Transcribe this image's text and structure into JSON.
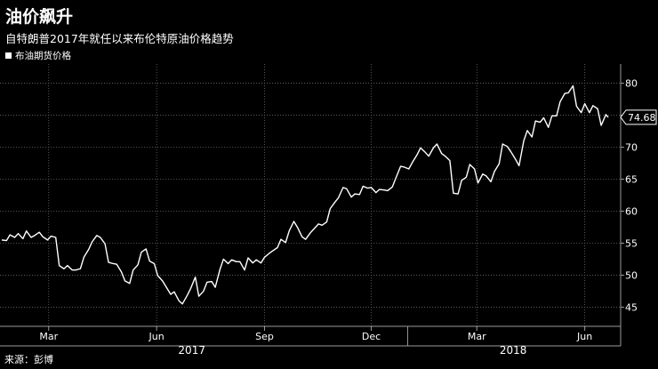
{
  "header": {
    "title": "油价飙升",
    "subtitle": "自特朗普2017年就任以来布伦特原油价格趋势",
    "legend": "布油期货价格",
    "source": "来源：彭博"
  },
  "chart_data": {
    "type": "line",
    "title": "油价飙升",
    "subtitle": "自特朗普2017年就任以来布伦特原油价格趋势",
    "xlabel": "",
    "ylabel": "",
    "ylim": [
      42,
      83
    ],
    "yticks": [
      45,
      50,
      55,
      60,
      65,
      70,
      75,
      80
    ],
    "grid": true,
    "legend_position": "top-left",
    "x_ticks": [
      {
        "label": "Mar",
        "date": "2017-03-01"
      },
      {
        "label": "Jun",
        "date": "2017-06-01"
      },
      {
        "label": "Sep",
        "date": "2017-09-01"
      },
      {
        "label": "Dec",
        "date": "2017-12-01"
      },
      {
        "label": "Mar",
        "date": "2018-03-01"
      },
      {
        "label": "Jun",
        "date": "2018-06-01"
      }
    ],
    "year_labels": [
      {
        "label": "2017",
        "date": "2017-07-01"
      },
      {
        "label": "2018",
        "date": "2018-04-01"
      }
    ],
    "year_dividers": [
      "2018-01-01"
    ],
    "last_value_label": "74.68",
    "series": [
      {
        "name": "布油期货价格",
        "color": "#ffffff",
        "points": [
          [
            "2017-01-20",
            55.5
          ],
          [
            "2017-01-24",
            55.4
          ],
          [
            "2017-01-27",
            56.3
          ],
          [
            "2017-01-31",
            55.9
          ],
          [
            "2017-02-03",
            56.5
          ],
          [
            "2017-02-07",
            55.7
          ],
          [
            "2017-02-10",
            56.9
          ],
          [
            "2017-02-14",
            55.9
          ],
          [
            "2017-02-17",
            56.2
          ],
          [
            "2017-02-21",
            56.7
          ],
          [
            "2017-02-24",
            56.0
          ],
          [
            "2017-02-28",
            55.5
          ],
          [
            "2017-03-03",
            56.1
          ],
          [
            "2017-03-07",
            55.9
          ],
          [
            "2017-03-10",
            51.5
          ],
          [
            "2017-03-14",
            51.0
          ],
          [
            "2017-03-17",
            51.5
          ],
          [
            "2017-03-21",
            50.8
          ],
          [
            "2017-03-24",
            50.8
          ],
          [
            "2017-03-28",
            51.0
          ],
          [
            "2017-03-31",
            52.8
          ],
          [
            "2017-04-04",
            54.0
          ],
          [
            "2017-04-07",
            55.2
          ],
          [
            "2017-04-11",
            56.2
          ],
          [
            "2017-04-14",
            55.9
          ],
          [
            "2017-04-18",
            54.9
          ],
          [
            "2017-04-21",
            52.0
          ],
          [
            "2017-04-25",
            51.8
          ],
          [
            "2017-04-28",
            51.7
          ],
          [
            "2017-05-02",
            50.5
          ],
          [
            "2017-05-05",
            49.1
          ],
          [
            "2017-05-09",
            48.7
          ],
          [
            "2017-05-12",
            50.8
          ],
          [
            "2017-05-16",
            51.6
          ],
          [
            "2017-05-19",
            53.6
          ],
          [
            "2017-05-23",
            54.1
          ],
          [
            "2017-05-26",
            52.2
          ],
          [
            "2017-05-30",
            51.8
          ],
          [
            "2017-06-02",
            49.9
          ],
          [
            "2017-06-06",
            49.1
          ],
          [
            "2017-06-09",
            48.2
          ],
          [
            "2017-06-13",
            47.0
          ],
          [
            "2017-06-16",
            47.4
          ],
          [
            "2017-06-20",
            46.0
          ],
          [
            "2017-06-23",
            45.5
          ],
          [
            "2017-06-27",
            46.8
          ],
          [
            "2017-06-30",
            47.9
          ],
          [
            "2017-07-04",
            49.7
          ],
          [
            "2017-07-07",
            46.7
          ],
          [
            "2017-07-11",
            47.5
          ],
          [
            "2017-07-14",
            48.9
          ],
          [
            "2017-07-18",
            49.0
          ],
          [
            "2017-07-21",
            48.1
          ],
          [
            "2017-07-25",
            50.9
          ],
          [
            "2017-07-28",
            52.5
          ],
          [
            "2017-08-01",
            51.8
          ],
          [
            "2017-08-04",
            52.4
          ],
          [
            "2017-08-08",
            52.1
          ],
          [
            "2017-08-11",
            52.1
          ],
          [
            "2017-08-15",
            50.8
          ],
          [
            "2017-08-18",
            52.7
          ],
          [
            "2017-08-22",
            51.9
          ],
          [
            "2017-08-25",
            52.4
          ],
          [
            "2017-08-29",
            51.9
          ],
          [
            "2017-09-01",
            52.8
          ],
          [
            "2017-09-05",
            53.4
          ],
          [
            "2017-09-08",
            53.8
          ],
          [
            "2017-09-12",
            54.3
          ],
          [
            "2017-09-15",
            55.6
          ],
          [
            "2017-09-19",
            55.1
          ],
          [
            "2017-09-22",
            56.9
          ],
          [
            "2017-09-26",
            58.4
          ],
          [
            "2017-09-29",
            57.5
          ],
          [
            "2017-10-03",
            56.0
          ],
          [
            "2017-10-06",
            55.6
          ],
          [
            "2017-10-10",
            56.6
          ],
          [
            "2017-10-13",
            57.2
          ],
          [
            "2017-10-17",
            58.0
          ],
          [
            "2017-10-20",
            57.8
          ],
          [
            "2017-10-24",
            58.3
          ],
          [
            "2017-10-27",
            60.4
          ],
          [
            "2017-10-31",
            61.4
          ],
          [
            "2017-11-03",
            62.1
          ],
          [
            "2017-11-07",
            63.7
          ],
          [
            "2017-11-10",
            63.5
          ],
          [
            "2017-11-14",
            62.2
          ],
          [
            "2017-11-17",
            62.7
          ],
          [
            "2017-11-21",
            62.6
          ],
          [
            "2017-11-24",
            63.9
          ],
          [
            "2017-11-28",
            63.6
          ],
          [
            "2017-12-01",
            63.7
          ],
          [
            "2017-12-05",
            62.9
          ],
          [
            "2017-12-08",
            63.4
          ],
          [
            "2017-12-12",
            63.3
          ],
          [
            "2017-12-15",
            63.2
          ],
          [
            "2017-12-19",
            63.8
          ],
          [
            "2017-12-22",
            65.2
          ],
          [
            "2017-12-26",
            67.0
          ],
          [
            "2017-12-29",
            66.9
          ],
          [
            "2018-01-02",
            66.6
          ],
          [
            "2018-01-05",
            67.6
          ],
          [
            "2018-01-09",
            68.8
          ],
          [
            "2018-01-12",
            69.9
          ],
          [
            "2018-01-16",
            69.2
          ],
          [
            "2018-01-19",
            68.6
          ],
          [
            "2018-01-23",
            69.9
          ],
          [
            "2018-01-26",
            70.5
          ],
          [
            "2018-01-30",
            69.0
          ],
          [
            "2018-02-02",
            68.6
          ],
          [
            "2018-02-06",
            67.9
          ],
          [
            "2018-02-09",
            62.8
          ],
          [
            "2018-02-13",
            62.7
          ],
          [
            "2018-02-16",
            64.8
          ],
          [
            "2018-02-20",
            65.3
          ],
          [
            "2018-02-23",
            67.3
          ],
          [
            "2018-02-27",
            66.6
          ],
          [
            "2018-03-02",
            64.4
          ],
          [
            "2018-03-06",
            65.8
          ],
          [
            "2018-03-09",
            65.5
          ],
          [
            "2018-03-13",
            64.6
          ],
          [
            "2018-03-16",
            66.2
          ],
          [
            "2018-03-20",
            67.4
          ],
          [
            "2018-03-23",
            70.5
          ],
          [
            "2018-03-27",
            70.1
          ],
          [
            "2018-03-30",
            69.3
          ],
          [
            "2018-04-03",
            68.1
          ],
          [
            "2018-04-06",
            67.1
          ],
          [
            "2018-04-10",
            71.0
          ],
          [
            "2018-04-13",
            72.6
          ],
          [
            "2018-04-17",
            71.6
          ],
          [
            "2018-04-20",
            74.1
          ],
          [
            "2018-04-24",
            73.9
          ],
          [
            "2018-04-27",
            74.6
          ],
          [
            "2018-05-01",
            73.1
          ],
          [
            "2018-05-04",
            74.9
          ],
          [
            "2018-05-08",
            74.9
          ],
          [
            "2018-05-11",
            77.1
          ],
          [
            "2018-05-15",
            78.4
          ],
          [
            "2018-05-18",
            78.5
          ],
          [
            "2018-05-22",
            79.6
          ],
          [
            "2018-05-25",
            76.4
          ],
          [
            "2018-05-29",
            75.4
          ],
          [
            "2018-06-01",
            76.8
          ],
          [
            "2018-06-05",
            75.4
          ],
          [
            "2018-06-08",
            76.5
          ],
          [
            "2018-06-12",
            76.0
          ],
          [
            "2018-06-15",
            73.4
          ],
          [
            "2018-06-19",
            75.1
          ],
          [
            "2018-06-21",
            74.68
          ]
        ]
      }
    ]
  }
}
